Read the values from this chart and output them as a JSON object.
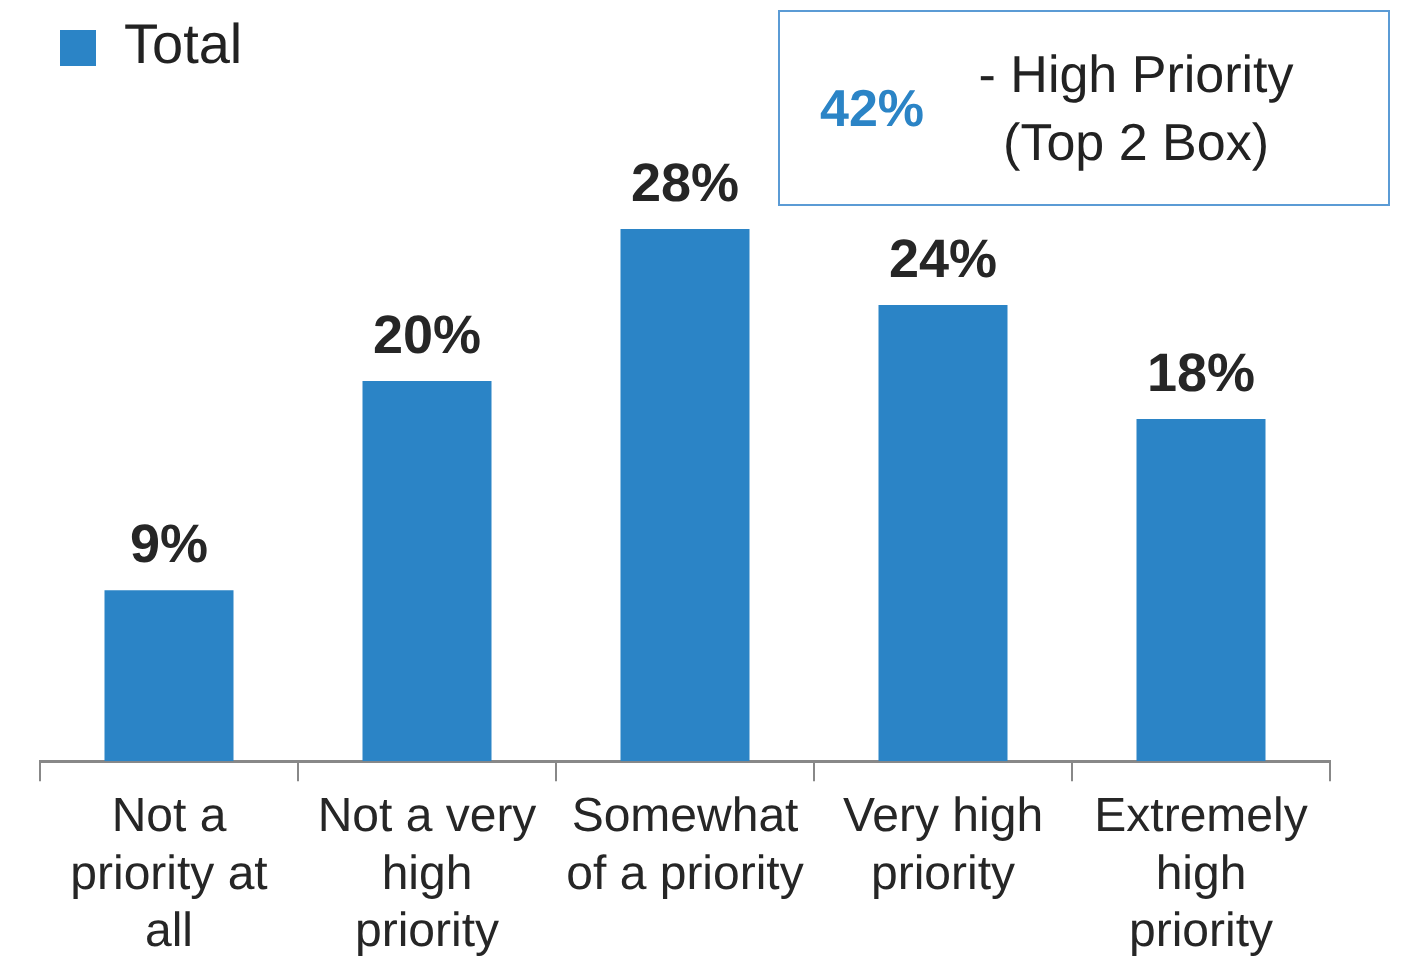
{
  "chart_data": {
    "type": "bar",
    "categories": [
      "Not a priority at all",
      "Not a very high priority",
      "Somewhat of a priority",
      "Very high priority",
      "Extremely high priority"
    ],
    "series": [
      {
        "name": "Total",
        "color": "#2b84c6",
        "values": [
          9,
          20,
          28,
          24,
          18
        ],
        "value_labels": [
          "9%",
          "20%",
          "28%",
          "24%",
          "18%"
        ]
      }
    ],
    "legend": "top left",
    "annotations": [
      "42% - High Priority (Top 2 Box)"
    ]
  }
}
